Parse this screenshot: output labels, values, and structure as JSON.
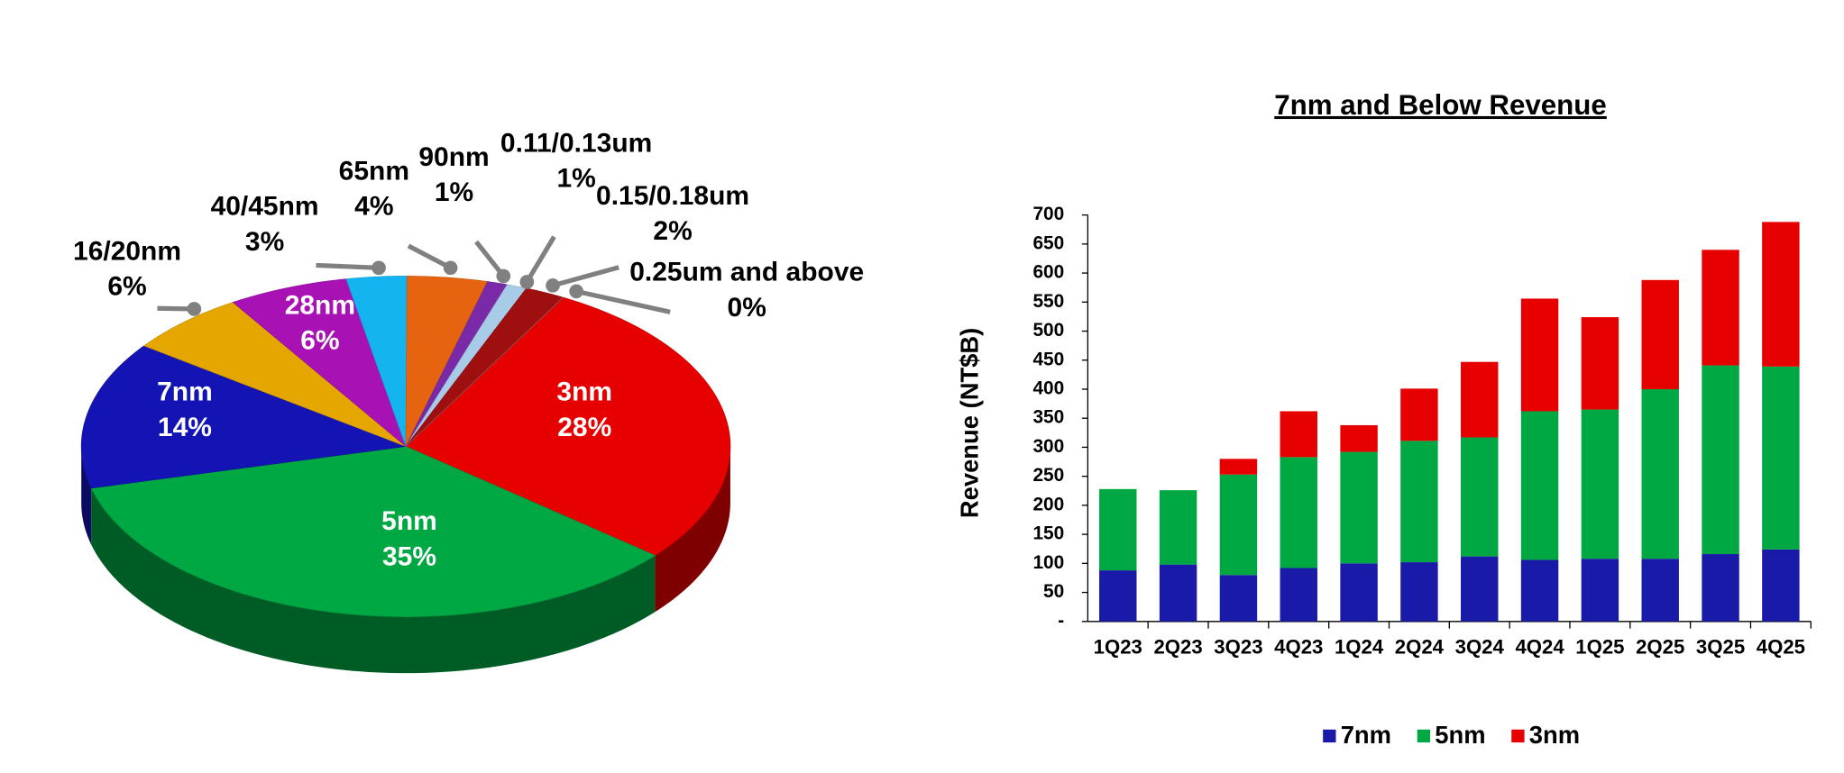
{
  "chart_data": [
    {
      "type": "pie",
      "categories": [
        "3nm",
        "5nm",
        "7nm",
        "16/20nm",
        "28nm",
        "40/45nm",
        "65nm",
        "90nm",
        "0.11/0.13um",
        "0.15/0.18um",
        "0.25um and above"
      ],
      "values": [
        28,
        35,
        14,
        6,
        6,
        3,
        4,
        1,
        1,
        2,
        0
      ],
      "value_labels": [
        "28%",
        "35%",
        "14%",
        "6%",
        "6%",
        "3%",
        "4%",
        "1%",
        "1%",
        "2%",
        "0%"
      ],
      "colors": [
        "#e60000",
        "#00a844",
        "#1414b4",
        "#e6a600",
        "#a812b4",
        "#14b4f0",
        "#e6640f",
        "#7a2aa8",
        "#a8cce8",
        "#a00f0f",
        "#888888"
      ]
    },
    {
      "type": "bar",
      "stacked": true,
      "title": "7nm and Below Revenue",
      "y_label": "Revenue (NT$B)",
      "categories": [
        "1Q23",
        "2Q23",
        "3Q23",
        "4Q23",
        "1Q24",
        "2Q24",
        "3Q24",
        "4Q24",
        "1Q25",
        "2Q25",
        "3Q25",
        "4Q25"
      ],
      "series": [
        {
          "name": "7nm",
          "color": "#1a1aa8",
          "values": [
            88,
            98,
            80,
            92,
            100,
            102,
            112,
            106,
            108,
            108,
            116,
            124
          ]
        },
        {
          "name": "5nm",
          "color": "#00a844",
          "values": [
            140,
            128,
            173,
            191,
            192,
            209,
            205,
            256,
            257,
            292,
            325,
            315
          ]
        },
        {
          "name": "3nm",
          "color": "#e60000",
          "values": [
            0,
            0,
            27,
            79,
            46,
            90,
            130,
            194,
            159,
            188,
            199,
            249
          ]
        }
      ],
      "ylim": [
        0,
        700
      ],
      "yticks": [
        {
          "value": 0,
          "label": "-"
        },
        50,
        100,
        150,
        200,
        250,
        300,
        350,
        400,
        450,
        500,
        550,
        600,
        650,
        700
      ]
    }
  ]
}
